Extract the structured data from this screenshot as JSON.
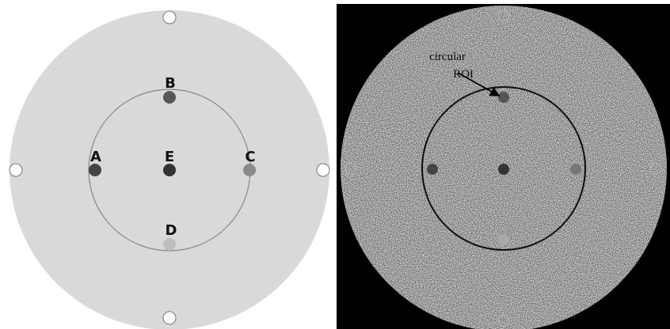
{
  "left_panel": {
    "labels": {
      "A": "A",
      "B": "B",
      "C": "C",
      "D": "D",
      "E": "E"
    }
  },
  "right_panel": {
    "annotation": {
      "line1": "circular",
      "line2": "ROI"
    }
  }
}
